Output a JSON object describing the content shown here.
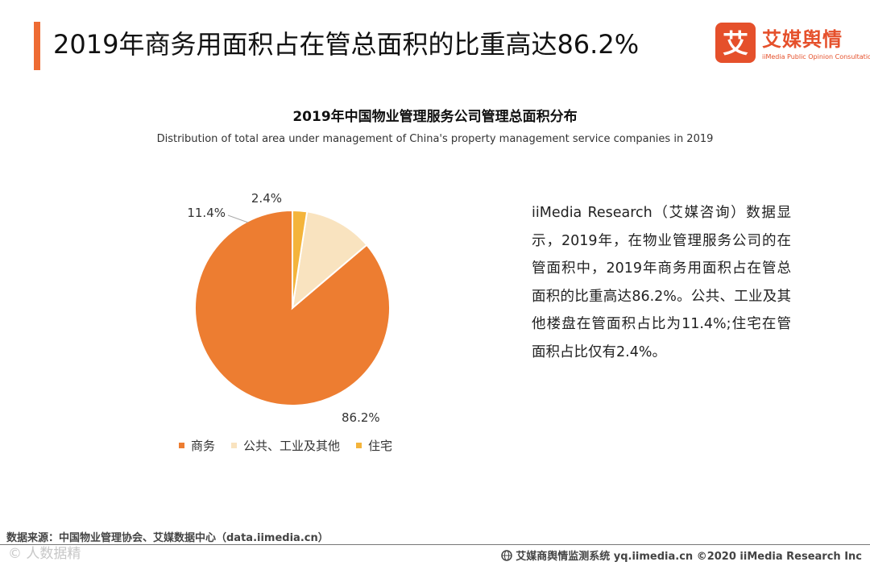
{
  "header": {
    "title": "2019年商务用面积占在管总面积的比重高达86.2%",
    "accent_color": "#ee6b33"
  },
  "logo": {
    "mark_char": "艾",
    "name_cn": "艾媒舆情",
    "name_en": "iiMedia Public Opinion Consultation",
    "color": "#e5502b"
  },
  "chart_data": {
    "type": "pie",
    "title": "2019年中国物业管理服务公司管理总面积分布",
    "subtitle": "Distribution of total area under management of China's property management service companies in 2019",
    "categories": [
      "商务",
      "公共、工业及其他",
      "住宅"
    ],
    "values": [
      86.2,
      11.4,
      2.4
    ],
    "labels": [
      "86.2%",
      "11.4%",
      "2.4%"
    ],
    "colors": [
      "#ed7d31",
      "#f9e3bf",
      "#f4b43b"
    ],
    "unit": "%",
    "legend_position": "bottom"
  },
  "description": "iiMedia Research（艾媒咨询）数据显示，2019年，在物业管理服务公司的在管面积中，2019年商务用面积占在管总面积的比重高达86.2%。公共、工业及其他楼盘在管面积占比为11.4%;住宅在管面积占比仅有2.4%。",
  "source": "数据来源：中国物业管理协会、艾媒数据中心（data.iimedia.cn）",
  "watermark": "© 人数据精",
  "footer": {
    "text": "艾媒商舆情监测系统 yq.iimedia.cn ©2020 iiMedia Research Inc"
  }
}
